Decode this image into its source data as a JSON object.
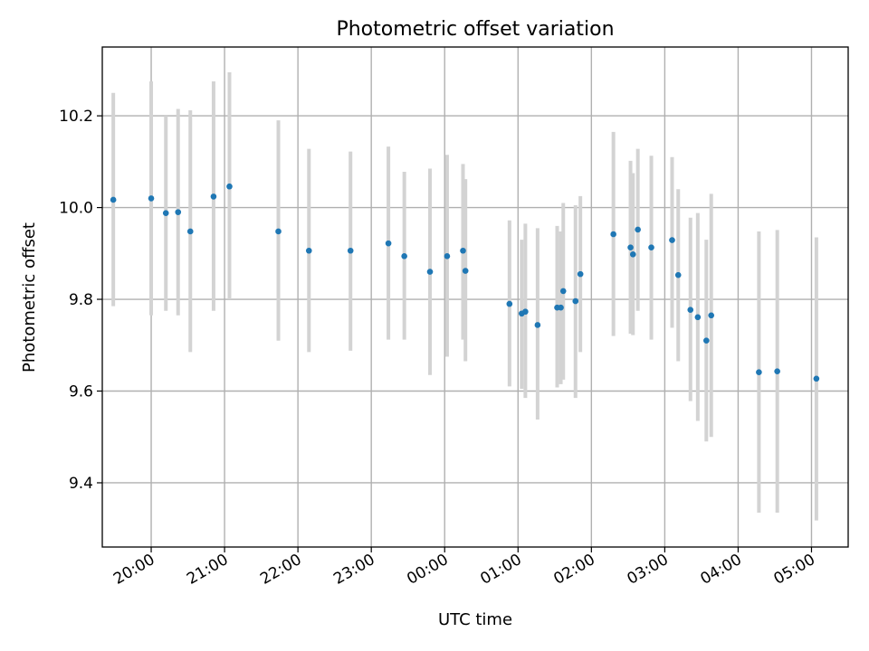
{
  "chart_data": {
    "type": "scatter",
    "title": "Photometric offset variation",
    "xlabel": "UTC time",
    "ylabel": "Photometric offset",
    "x_axis": "time",
    "x_range": [
      "19:20",
      "05:30"
    ],
    "ylim": [
      9.26,
      10.35
    ],
    "xticks": [
      "20:00",
      "21:00",
      "22:00",
      "23:00",
      "00:00",
      "01:00",
      "02:00",
      "03:00",
      "04:00",
      "05:00"
    ],
    "yticks": [
      "9.4",
      "9.6",
      "9.8",
      "10.0",
      "10.2"
    ],
    "grid": true,
    "marker_color": "#1f77b4",
    "errorbar_color": "#d3d3d3",
    "series": [
      {
        "points": [
          {
            "t": "19:29",
            "y": 10.017,
            "lo": 9.785,
            "hi": 10.25
          },
          {
            "t": "20:00",
            "y": 10.02,
            "lo": 9.765,
            "hi": 10.275
          },
          {
            "t": "20:12",
            "y": 9.988,
            "lo": 9.775,
            "hi": 10.2
          },
          {
            "t": "20:22",
            "y": 9.99,
            "lo": 9.765,
            "hi": 10.215
          },
          {
            "t": "20:32",
            "y": 9.948,
            "lo": 9.685,
            "hi": 10.212
          },
          {
            "t": "20:51",
            "y": 10.024,
            "lo": 9.775,
            "hi": 10.275
          },
          {
            "t": "21:04",
            "y": 10.046,
            "lo": 9.8,
            "hi": 10.295
          },
          {
            "t": "21:44",
            "y": 9.948,
            "lo": 9.71,
            "hi": 10.19
          },
          {
            "t": "22:09",
            "y": 9.906,
            "lo": 9.685,
            "hi": 10.128
          },
          {
            "t": "22:43",
            "y": 9.906,
            "lo": 9.688,
            "hi": 10.122
          },
          {
            "t": "23:14",
            "y": 9.922,
            "lo": 9.712,
            "hi": 10.133
          },
          {
            "t": "23:27",
            "y": 9.894,
            "lo": 9.712,
            "hi": 10.078
          },
          {
            "t": "23:48",
            "y": 9.86,
            "lo": 9.635,
            "hi": 10.085
          },
          {
            "t": "00:02",
            "y": 9.894,
            "lo": 9.675,
            "hi": 10.115
          },
          {
            "t": "00:15",
            "y": 9.906,
            "lo": 9.712,
            "hi": 10.095
          },
          {
            "t": "00:17",
            "y": 9.862,
            "lo": 9.665,
            "hi": 10.062
          },
          {
            "t": "00:53",
            "y": 9.79,
            "lo": 9.61,
            "hi": 9.972
          },
          {
            "t": "01:03",
            "y": 9.769,
            "lo": 9.605,
            "hi": 9.93
          },
          {
            "t": "01:06",
            "y": 9.773,
            "lo": 9.585,
            "hi": 9.965
          },
          {
            "t": "01:16",
            "y": 9.744,
            "lo": 9.538,
            "hi": 9.955
          },
          {
            "t": "01:32",
            "y": 9.782,
            "lo": 9.608,
            "hi": 9.96
          },
          {
            "t": "01:35",
            "y": 9.782,
            "lo": 9.615,
            "hi": 9.948
          },
          {
            "t": "01:37",
            "y": 9.818,
            "lo": 9.625,
            "hi": 10.01
          },
          {
            "t": "01:47",
            "y": 9.796,
            "lo": 9.585,
            "hi": 10.005
          },
          {
            "t": "01:51",
            "y": 9.855,
            "lo": 9.685,
            "hi": 10.025
          },
          {
            "t": "02:18",
            "y": 9.942,
            "lo": 9.72,
            "hi": 10.165
          },
          {
            "t": "02:32",
            "y": 9.913,
            "lo": 9.725,
            "hi": 10.102
          },
          {
            "t": "02:34",
            "y": 9.898,
            "lo": 9.722,
            "hi": 10.075
          },
          {
            "t": "02:38",
            "y": 9.952,
            "lo": 9.775,
            "hi": 10.128
          },
          {
            "t": "02:49",
            "y": 9.913,
            "lo": 9.712,
            "hi": 10.113
          },
          {
            "t": "03:06",
            "y": 9.929,
            "lo": 9.738,
            "hi": 10.11
          },
          {
            "t": "03:11",
            "y": 9.853,
            "lo": 9.665,
            "hi": 10.04
          },
          {
            "t": "03:21",
            "y": 9.777,
            "lo": 9.578,
            "hi": 9.978
          },
          {
            "t": "03:27",
            "y": 9.761,
            "lo": 9.535,
            "hi": 9.988
          },
          {
            "t": "03:34",
            "y": 9.71,
            "lo": 9.49,
            "hi": 9.93
          },
          {
            "t": "03:38",
            "y": 9.765,
            "lo": 9.5,
            "hi": 10.03
          },
          {
            "t": "04:17",
            "y": 9.641,
            "lo": 9.335,
            "hi": 9.948
          },
          {
            "t": "04:32",
            "y": 9.643,
            "lo": 9.335,
            "hi": 9.951
          },
          {
            "t": "05:04",
            "y": 9.627,
            "lo": 9.318,
            "hi": 9.935
          }
        ]
      }
    ]
  }
}
